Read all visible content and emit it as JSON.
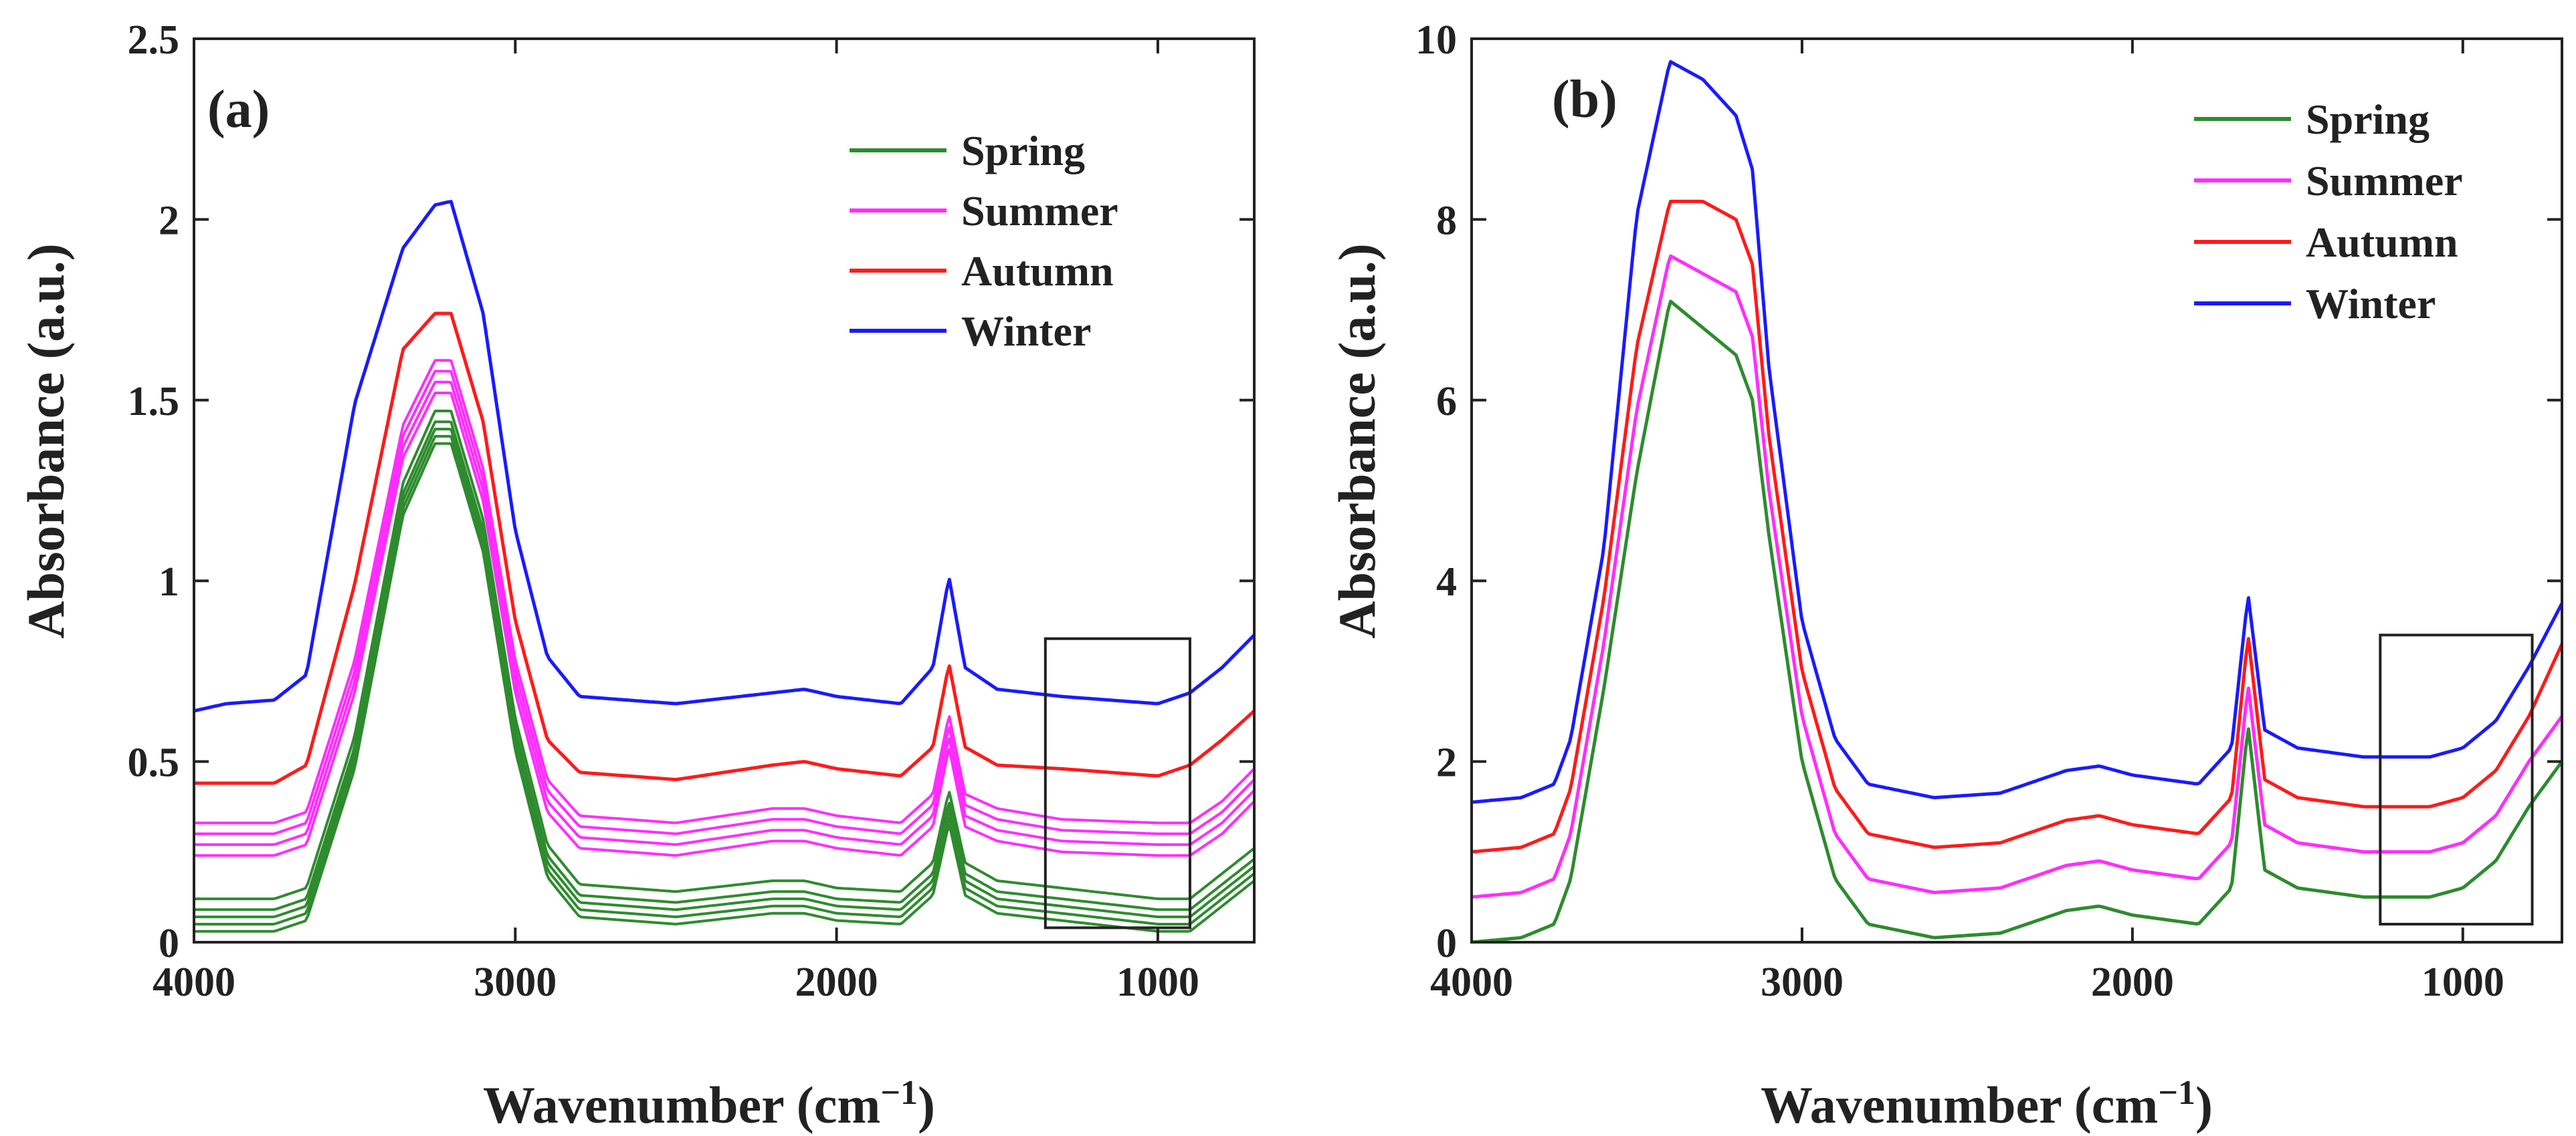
{
  "chart_data": [
    {
      "type": "line",
      "panel_label": "(a)",
      "title": "",
      "xlabel": "Wavenumber (cm",
      "xlabel_sup": "−1",
      "xlabel_close": ")",
      "ylabel": "Absorbance (a.u.)",
      "xlim": [
        4000,
        700
      ],
      "ylim": [
        0,
        2.5
      ],
      "xticks": [
        4000,
        3000,
        2000,
        1000
      ],
      "xtick_labels": [
        "4000",
        "3000",
        "2000",
        "1000"
      ],
      "yticks": [
        0,
        0.5,
        1,
        1.5,
        2,
        2.5
      ],
      "ytick_labels": [
        "0",
        "0.5",
        "1",
        "1.5",
        "2",
        "2.5"
      ],
      "legend_position": "top-right",
      "highlight_box": {
        "x": [
          1350,
          900
        ],
        "y": [
          0.04,
          0.84
        ]
      },
      "series": [
        {
          "name": "Spring",
          "color": "#2e8b2e",
          "offsets": [
            0.03,
            0.05,
            0.07,
            0.09,
            0.12
          ],
          "x": [
            4000,
            3900,
            3750,
            3650,
            3500,
            3350,
            3250,
            3200,
            3100,
            3000,
            2900,
            2800,
            2500,
            2200,
            2100,
            2000,
            1800,
            1700,
            1650,
            1600,
            1500,
            1300,
            1000,
            900,
            800,
            700
          ],
          "values": [
            0.0,
            0.0,
            0.0,
            0.03,
            0.45,
            1.15,
            1.35,
            1.35,
            1.05,
            0.5,
            0.15,
            0.04,
            0.02,
            0.05,
            0.05,
            0.03,
            0.02,
            0.1,
            0.3,
            0.1,
            0.05,
            0.03,
            0.0,
            0.0,
            0.07,
            0.14
          ]
        },
        {
          "name": "Summer",
          "color": "#ff2dff",
          "offsets": [
            0.24,
            0.27,
            0.3,
            0.33
          ],
          "x": [
            4000,
            3900,
            3750,
            3650,
            3500,
            3350,
            3250,
            3200,
            3100,
            3000,
            2900,
            2800,
            2500,
            2200,
            2100,
            2000,
            1800,
            1700,
            1650,
            1600,
            1500,
            1300,
            1000,
            900,
            800,
            700
          ],
          "values": [
            0.0,
            0.0,
            0.0,
            0.03,
            0.45,
            1.1,
            1.28,
            1.28,
            0.98,
            0.45,
            0.12,
            0.02,
            0.0,
            0.04,
            0.04,
            0.02,
            0.0,
            0.08,
            0.3,
            0.08,
            0.04,
            0.01,
            0.0,
            0.0,
            0.06,
            0.15
          ]
        },
        {
          "name": "Autumn",
          "color": "#ff1a1a",
          "offsets": [
            0.44
          ],
          "x": [
            4000,
            3900,
            3750,
            3650,
            3500,
            3350,
            3250,
            3200,
            3100,
            3000,
            2900,
            2800,
            2500,
            2200,
            2100,
            2000,
            1800,
            1700,
            1650,
            1600,
            1500,
            1300,
            1000,
            900,
            800,
            700
          ],
          "values": [
            0.0,
            0.0,
            0.0,
            0.05,
            0.55,
            1.2,
            1.3,
            1.3,
            1.0,
            0.45,
            0.12,
            0.03,
            0.01,
            0.05,
            0.06,
            0.04,
            0.02,
            0.1,
            0.33,
            0.1,
            0.05,
            0.04,
            0.02,
            0.05,
            0.12,
            0.2
          ]
        },
        {
          "name": "Winter",
          "color": "#1a1aff",
          "offsets": [
            0.64
          ],
          "x": [
            4000,
            3900,
            3750,
            3650,
            3500,
            3350,
            3250,
            3200,
            3100,
            3000,
            2900,
            2800,
            2500,
            2200,
            2100,
            2000,
            1800,
            1700,
            1650,
            1600,
            1500,
            1300,
            1000,
            900,
            800,
            700
          ],
          "values": [
            0.0,
            0.02,
            0.03,
            0.1,
            0.85,
            1.28,
            1.4,
            1.41,
            1.1,
            0.5,
            0.15,
            0.04,
            0.02,
            0.05,
            0.06,
            0.04,
            0.02,
            0.12,
            0.37,
            0.12,
            0.06,
            0.04,
            0.02,
            0.05,
            0.12,
            0.21
          ]
        }
      ]
    },
    {
      "type": "line",
      "panel_label": "(b)",
      "title": "",
      "xlabel": "Wavenumber (cm",
      "xlabel_sup": "−1",
      "xlabel_close": ")",
      "ylabel": "Absorbance (a.u.)",
      "xlim": [
        4000,
        700
      ],
      "ylim": [
        0,
        10
      ],
      "xticks": [
        4000,
        3000,
        2000,
        1000
      ],
      "xtick_labels": [
        "4000",
        "3000",
        "2000",
        "1000"
      ],
      "yticks": [
        0,
        2,
        4,
        6,
        8,
        10
      ],
      "ytick_labels": [
        "0",
        "2",
        "4",
        "6",
        "8",
        "10"
      ],
      "legend_position": "top-right",
      "highlight_box": {
        "x": [
          1250,
          790
        ],
        "y": [
          0.2,
          3.4
        ]
      },
      "series": [
        {
          "name": "Spring",
          "color": "#2e8b2e",
          "offsets": [
            0.0
          ],
          "x": [
            4000,
            3850,
            3750,
            3700,
            3600,
            3500,
            3400,
            3300,
            3200,
            3150,
            3100,
            3000,
            2900,
            2800,
            2600,
            2400,
            2200,
            2100,
            2000,
            1800,
            1700,
            1650,
            1600,
            1500,
            1300,
            1100,
            1000,
            900,
            800,
            700
          ],
          "values": [
            0.0,
            0.05,
            0.2,
            0.7,
            2.8,
            5.2,
            7.1,
            6.8,
            6.5,
            6.0,
            4.5,
            2.0,
            0.7,
            0.2,
            0.05,
            0.1,
            0.35,
            0.4,
            0.3,
            0.2,
            0.6,
            2.4,
            0.8,
            0.6,
            0.5,
            0.5,
            0.6,
            0.9,
            1.5,
            2.0
          ]
        },
        {
          "name": "Summer",
          "color": "#ff2dff",
          "offsets": [
            0.5
          ],
          "x": [
            4000,
            3850,
            3750,
            3700,
            3600,
            3500,
            3400,
            3300,
            3200,
            3150,
            3100,
            3000,
            2900,
            2800,
            2600,
            2400,
            2200,
            2100,
            2000,
            1800,
            1700,
            1650,
            1600,
            1500,
            1300,
            1100,
            1000,
            900,
            800,
            700
          ],
          "values": [
            0.0,
            0.05,
            0.2,
            0.7,
            2.8,
            5.4,
            7.1,
            6.9,
            6.7,
            6.2,
            4.5,
            2.0,
            0.7,
            0.2,
            0.05,
            0.1,
            0.35,
            0.4,
            0.3,
            0.2,
            0.6,
            2.35,
            0.8,
            0.6,
            0.5,
            0.5,
            0.6,
            0.9,
            1.5,
            2.0
          ]
        },
        {
          "name": "Autumn",
          "color": "#ff1a1a",
          "offsets": [
            1.0
          ],
          "x": [
            4000,
            3850,
            3750,
            3700,
            3600,
            3500,
            3400,
            3300,
            3200,
            3150,
            3100,
            3000,
            2900,
            2800,
            2600,
            2400,
            2200,
            2100,
            2000,
            1800,
            1700,
            1650,
            1600,
            1500,
            1300,
            1100,
            1000,
            900,
            800,
            700
          ],
          "values": [
            0.0,
            0.05,
            0.2,
            0.7,
            2.8,
            5.6,
            7.2,
            7.2,
            7.0,
            6.5,
            4.6,
            2.0,
            0.7,
            0.2,
            0.05,
            0.1,
            0.35,
            0.4,
            0.3,
            0.2,
            0.6,
            2.4,
            0.8,
            0.6,
            0.5,
            0.5,
            0.6,
            0.9,
            1.5,
            2.3
          ]
        },
        {
          "name": "Winter",
          "color": "#1a1aff",
          "offsets": [
            1.55
          ],
          "x": [
            4000,
            3850,
            3750,
            3700,
            3600,
            3500,
            3400,
            3300,
            3200,
            3150,
            3100,
            3000,
            2900,
            2800,
            2600,
            2400,
            2200,
            2100,
            2000,
            1800,
            1700,
            1650,
            1600,
            1500,
            1300,
            1100,
            1000,
            900,
            800,
            700
          ],
          "values": [
            0.0,
            0.05,
            0.2,
            0.7,
            2.8,
            6.5,
            8.2,
            8.0,
            7.6,
            7.0,
            4.8,
            2.0,
            0.7,
            0.2,
            0.05,
            0.1,
            0.35,
            0.4,
            0.3,
            0.2,
            0.6,
            2.3,
            0.8,
            0.6,
            0.5,
            0.5,
            0.6,
            0.9,
            1.5,
            2.2
          ]
        }
      ]
    }
  ]
}
